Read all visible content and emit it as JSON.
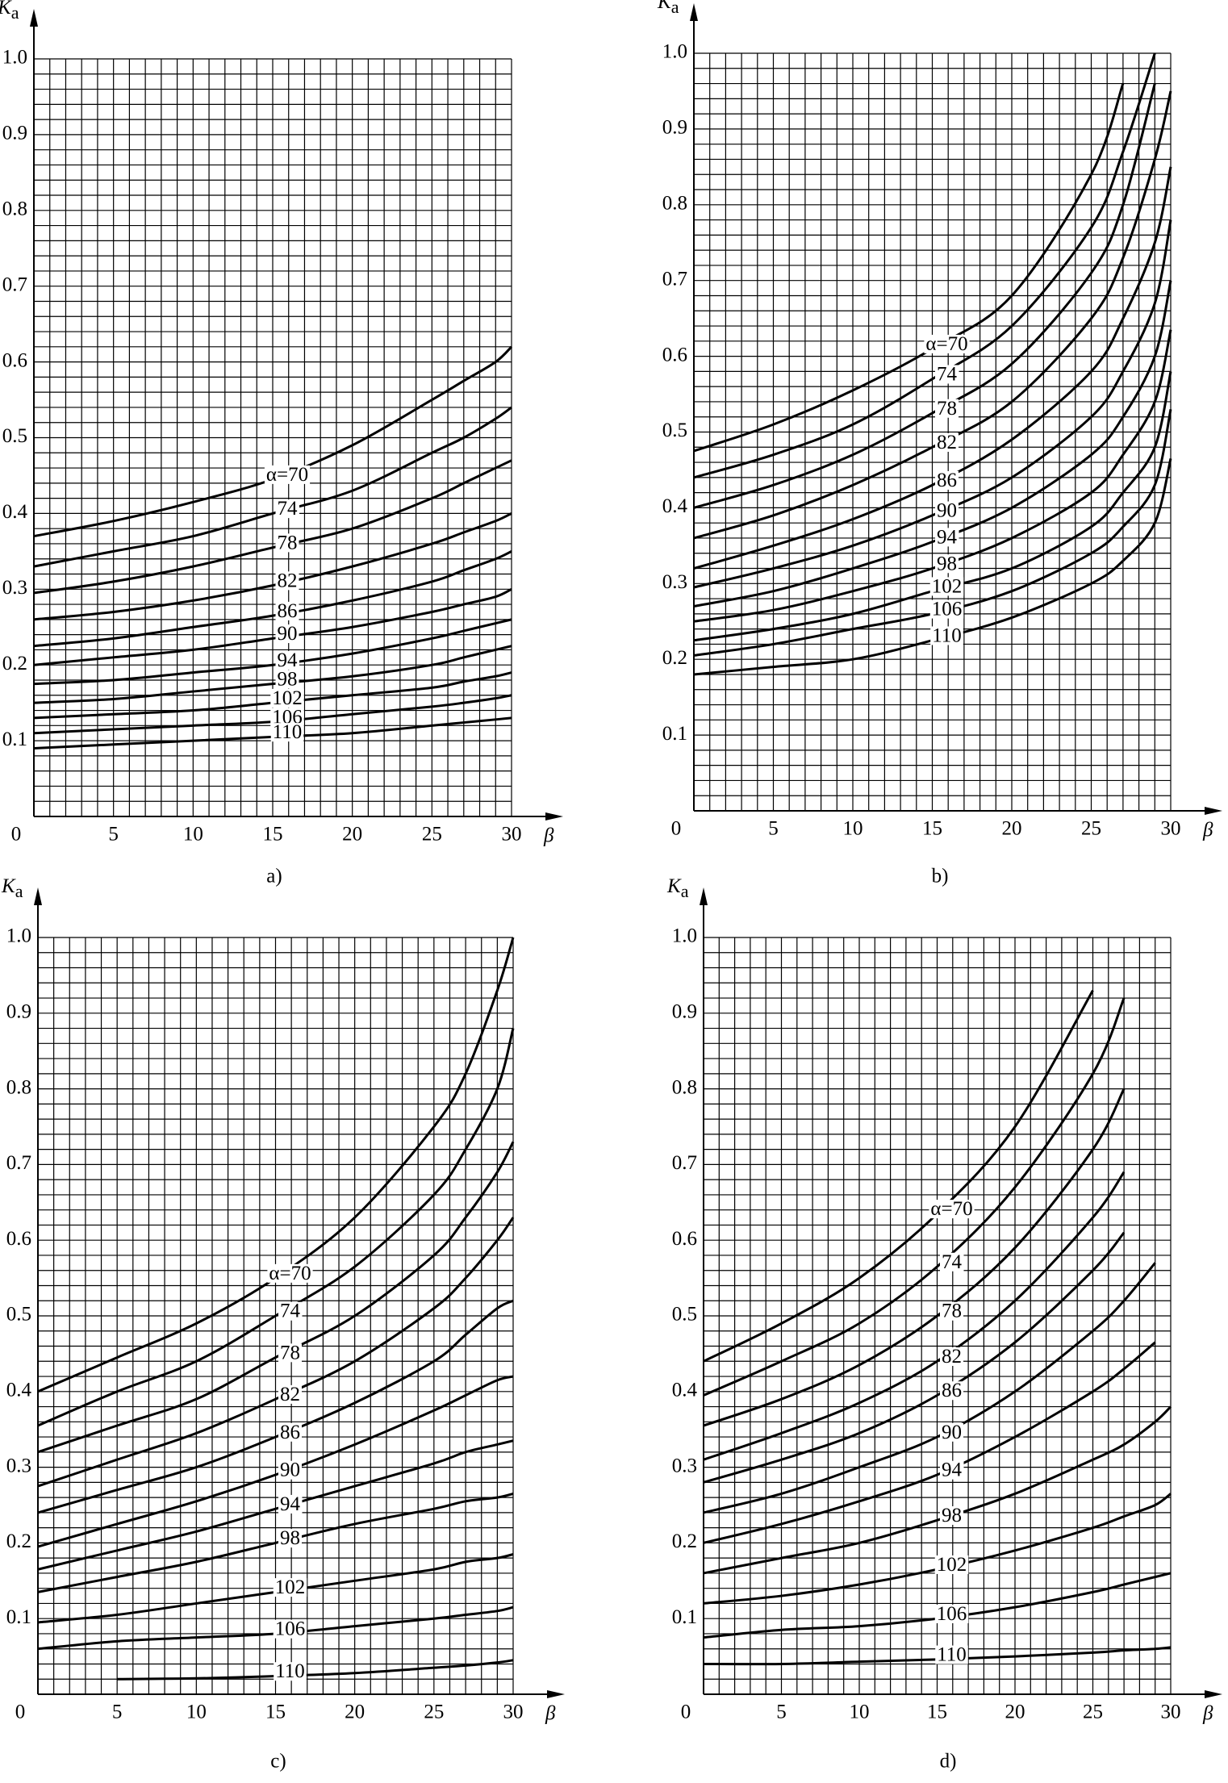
{
  "chart_data": [
    {
      "type": "line",
      "caption": "a)",
      "ylabel": "Ka",
      "xlabel": "β",
      "color": "#000000",
      "grid": true,
      "xlim": [
        0,
        30
      ],
      "ylim": [
        0,
        1
      ],
      "xticks": [
        0,
        5,
        10,
        15,
        20,
        25,
        30
      ],
      "yticks": [
        0.1,
        0.2,
        0.3,
        0.4,
        0.5,
        0.6,
        0.7,
        0.8,
        0.9,
        {
          "value": 1,
          "label": "1.0"
        }
      ],
      "x": [
        0,
        5,
        10,
        15,
        20,
        25,
        27,
        29,
        30
      ],
      "series": [
        {
          "name": "α=70",
          "values": [
            0.37,
            0.39,
            0.415,
            0.445,
            0.49,
            0.55,
            0.575,
            0.6,
            0.62
          ]
        },
        {
          "name": "74",
          "values": [
            0.33,
            0.35,
            0.37,
            0.4,
            0.43,
            0.48,
            0.5,
            0.525,
            0.54
          ]
        },
        {
          "name": "78",
          "values": [
            0.295,
            0.31,
            0.33,
            0.355,
            0.38,
            0.42,
            0.44,
            0.46,
            0.47
          ]
        },
        {
          "name": "82",
          "values": [
            0.26,
            0.27,
            0.285,
            0.305,
            0.33,
            0.36,
            0.375,
            0.39,
            0.4
          ]
        },
        {
          "name": "86",
          "values": [
            0.225,
            0.235,
            0.25,
            0.265,
            0.285,
            0.31,
            0.325,
            0.34,
            0.35
          ]
        },
        {
          "name": "90",
          "values": [
            0.2,
            0.21,
            0.22,
            0.235,
            0.25,
            0.27,
            0.28,
            0.29,
            0.3
          ]
        },
        {
          "name": "94",
          "values": [
            0.175,
            0.18,
            0.19,
            0.2,
            0.215,
            0.235,
            0.245,
            0.255,
            0.26
          ]
        },
        {
          "name": "98",
          "values": [
            0.15,
            0.155,
            0.165,
            0.175,
            0.185,
            0.2,
            0.21,
            0.22,
            0.225
          ]
        },
        {
          "name": "102",
          "values": [
            0.13,
            0.135,
            0.14,
            0.15,
            0.16,
            0.17,
            0.178,
            0.185,
            0.19
          ]
        },
        {
          "name": "106",
          "values": [
            0.11,
            0.115,
            0.12,
            0.125,
            0.135,
            0.145,
            0.15,
            0.156,
            0.16
          ]
        },
        {
          "name": "110",
          "values": [
            0.09,
            0.095,
            0.1,
            0.105,
            0.11,
            0.12,
            0.124,
            0.128,
            0.13
          ]
        }
      ]
    },
    {
      "type": "line",
      "caption": "b)",
      "ylabel": "Ka",
      "xlabel": "β",
      "color": "#000000",
      "grid": true,
      "xlim": [
        0,
        30
      ],
      "ylim": [
        0,
        1
      ],
      "xticks": [
        0,
        5,
        10,
        15,
        20,
        25,
        30
      ],
      "yticks": [
        0.1,
        0.2,
        0.3,
        0.4,
        0.5,
        0.6,
        0.7,
        0.8,
        0.9,
        {
          "value": 1,
          "label": "1.0"
        }
      ],
      "x": [
        0,
        5,
        10,
        15,
        20,
        25,
        27,
        29,
        30
      ],
      "series": [
        {
          "name": "α=70",
          "values": [
            0.475,
            0.51,
            0.555,
            0.61,
            0.68,
            0.84,
            0.96,
            null,
            null
          ]
        },
        {
          "name": "74",
          "values": [
            0.44,
            0.47,
            0.51,
            0.57,
            0.64,
            0.77,
            0.87,
            1.0,
            null
          ]
        },
        {
          "name": "78",
          "values": [
            0.4,
            0.43,
            0.47,
            0.525,
            0.59,
            0.71,
            0.8,
            0.96,
            null
          ]
        },
        {
          "name": "82",
          "values": [
            0.36,
            0.39,
            0.43,
            0.48,
            0.54,
            0.65,
            0.73,
            0.86,
            0.95
          ]
        },
        {
          "name": "86",
          "values": [
            0.32,
            0.35,
            0.385,
            0.43,
            0.49,
            0.58,
            0.65,
            0.75,
            0.85
          ]
        },
        {
          "name": "90",
          "values": [
            0.295,
            0.32,
            0.35,
            0.39,
            0.44,
            0.52,
            0.58,
            0.67,
            0.78
          ]
        },
        {
          "name": "94",
          "values": [
            0.27,
            0.29,
            0.32,
            0.355,
            0.4,
            0.47,
            0.52,
            0.6,
            0.7
          ]
        },
        {
          "name": "98",
          "values": [
            0.25,
            0.265,
            0.29,
            0.32,
            0.36,
            0.42,
            0.47,
            0.54,
            0.635
          ]
        },
        {
          "name": "102",
          "values": [
            0.225,
            0.24,
            0.26,
            0.29,
            0.32,
            0.375,
            0.42,
            0.48,
            0.58
          ]
        },
        {
          "name": "106",
          "values": [
            0.205,
            0.22,
            0.24,
            0.26,
            0.29,
            0.34,
            0.375,
            0.43,
            0.53
          ]
        },
        {
          "name": "110",
          "values": [
            0.18,
            0.19,
            0.2,
            0.225,
            0.255,
            0.3,
            0.33,
            0.38,
            0.465
          ]
        }
      ]
    },
    {
      "type": "line",
      "caption": "c)",
      "ylabel": "Ka",
      "xlabel": "β",
      "color": "#000000",
      "grid": true,
      "xlim": [
        0,
        30
      ],
      "ylim": [
        0,
        1
      ],
      "xticks": [
        0,
        5,
        10,
        15,
        20,
        25,
        30
      ],
      "yticks": [
        0.1,
        0.2,
        0.3,
        0.4,
        0.5,
        0.6,
        0.7,
        0.8,
        0.9,
        {
          "value": 1,
          "label": "1.0"
        }
      ],
      "x": [
        0,
        5,
        10,
        15,
        20,
        25,
        27,
        29,
        30
      ],
      "series": [
        {
          "name": "α=70",
          "values": [
            0.4,
            0.445,
            0.49,
            0.55,
            0.63,
            0.75,
            0.82,
            0.93,
            1.0
          ]
        },
        {
          "name": "74",
          "values": [
            0.355,
            0.4,
            0.44,
            0.5,
            0.565,
            0.66,
            0.72,
            0.8,
            0.88
          ]
        },
        {
          "name": "78",
          "values": [
            0.32,
            0.355,
            0.39,
            0.445,
            0.5,
            0.58,
            0.63,
            0.69,
            0.73
          ]
        },
        {
          "name": "82",
          "values": [
            0.275,
            0.31,
            0.345,
            0.39,
            0.44,
            0.51,
            0.55,
            0.6,
            0.63
          ]
        },
        {
          "name": "86",
          "values": [
            0.24,
            0.27,
            0.3,
            0.34,
            0.385,
            0.44,
            0.475,
            0.51,
            0.52
          ]
        },
        {
          "name": "90",
          "values": [
            0.195,
            0.225,
            0.255,
            0.29,
            0.33,
            0.375,
            0.395,
            0.415,
            0.42
          ]
        },
        {
          "name": "94",
          "values": [
            0.165,
            0.19,
            0.215,
            0.245,
            0.275,
            0.305,
            0.32,
            0.33,
            0.335
          ]
        },
        {
          "name": "98",
          "values": [
            0.135,
            0.155,
            0.175,
            0.2,
            0.225,
            0.245,
            0.255,
            0.26,
            0.265
          ]
        },
        {
          "name": "102",
          "values": [
            0.095,
            0.105,
            0.12,
            0.135,
            0.15,
            0.165,
            0.175,
            0.18,
            0.185
          ]
        },
        {
          "name": "106",
          "values": [
            0.06,
            0.07,
            0.075,
            0.08,
            0.09,
            0.1,
            0.105,
            0.11,
            0.115
          ]
        },
        {
          "name": "110",
          "values": [
            null,
            0.02,
            0.021,
            0.024,
            0.028,
            0.035,
            0.038,
            0.042,
            0.045
          ]
        }
      ]
    },
    {
      "type": "line",
      "caption": "d)",
      "ylabel": "Ka",
      "xlabel": "β",
      "color": "#000000",
      "grid": true,
      "xlim": [
        0,
        30
      ],
      "ylim": [
        0,
        1
      ],
      "xticks": [
        0,
        5,
        10,
        15,
        20,
        25,
        30
      ],
      "yticks": [
        0.1,
        0.2,
        0.3,
        0.4,
        0.5,
        0.6,
        0.7,
        0.8,
        0.9,
        {
          "value": 1,
          "label": "1.0"
        }
      ],
      "x": [
        0,
        5,
        10,
        15,
        20,
        25,
        27,
        29,
        30
      ],
      "series": [
        {
          "name": "α=70",
          "values": [
            0.44,
            0.49,
            0.55,
            0.635,
            0.75,
            0.93,
            null,
            null,
            null
          ]
        },
        {
          "name": "74",
          "values": [
            0.395,
            0.44,
            0.49,
            0.565,
            0.67,
            0.82,
            0.92,
            null,
            null
          ]
        },
        {
          "name": "78",
          "values": [
            0.355,
            0.39,
            0.435,
            0.5,
            0.59,
            0.72,
            0.8,
            null,
            null
          ]
        },
        {
          "name": "82",
          "values": [
            0.31,
            0.345,
            0.385,
            0.44,
            0.52,
            0.63,
            0.69,
            null,
            null
          ]
        },
        {
          "name": "86",
          "values": [
            0.28,
            0.31,
            0.345,
            0.395,
            0.465,
            0.56,
            0.61,
            null,
            null
          ]
        },
        {
          "name": "90",
          "values": [
            0.24,
            0.265,
            0.3,
            0.34,
            0.4,
            0.48,
            0.52,
            0.57,
            null
          ]
        },
        {
          "name": "94",
          "values": [
            0.2,
            0.225,
            0.255,
            0.29,
            0.34,
            0.4,
            0.43,
            0.465,
            null
          ]
        },
        {
          "name": "98",
          "values": [
            0.16,
            0.18,
            0.2,
            0.23,
            0.265,
            0.31,
            0.33,
            0.36,
            0.38
          ]
        },
        {
          "name": "102",
          "values": [
            0.12,
            0.13,
            0.145,
            0.165,
            0.19,
            0.22,
            0.235,
            0.25,
            0.265
          ]
        },
        {
          "name": "106",
          "values": [
            0.075,
            0.085,
            0.09,
            0.1,
            0.115,
            0.135,
            0.145,
            0.155,
            0.16
          ]
        },
        {
          "name": "110",
          "values": [
            0.04,
            0.04,
            0.043,
            0.046,
            0.05,
            0.055,
            0.058,
            0.06,
            0.062
          ]
        }
      ]
    }
  ]
}
